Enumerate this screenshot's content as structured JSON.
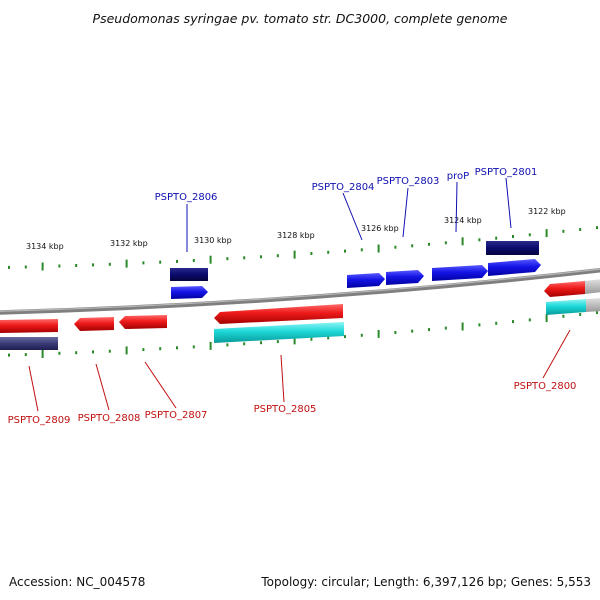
{
  "title": "Pseudomonas syringae pv. tomato str. DC3000, complete genome",
  "footer": {
    "accession": "Accession: NC_004578",
    "summary": "Topology: circular; Length: 6,397,126 bp; Genes: 5,553"
  },
  "scale_labels": [
    "3134 kbp",
    "3132 kbp",
    "3130 kbp",
    "3128 kbp",
    "3126 kbp",
    "3124 kbp",
    "3122 kbp"
  ],
  "genes_forward": [
    {
      "name": "PSPTO_2806"
    },
    {
      "name": "PSPTO_2804"
    },
    {
      "name": "PSPTO_2803"
    },
    {
      "name": "proP"
    },
    {
      "name": "PSPTO_2801"
    }
  ],
  "genes_reverse": [
    {
      "name": "PSPTO_2809"
    },
    {
      "name": "PSPTO_2808"
    },
    {
      "name": "PSPTO_2807"
    },
    {
      "name": "PSPTO_2805"
    },
    {
      "name": "PSPTO_2800"
    }
  ],
  "colors": {
    "forward_gene": "#1414e6",
    "forward_cog": "#0a0a6e",
    "reverse_gene": "#e81818",
    "reverse_cog": "#1cd8d8",
    "backbone": "#808080",
    "tick": "#2a8a2a"
  }
}
